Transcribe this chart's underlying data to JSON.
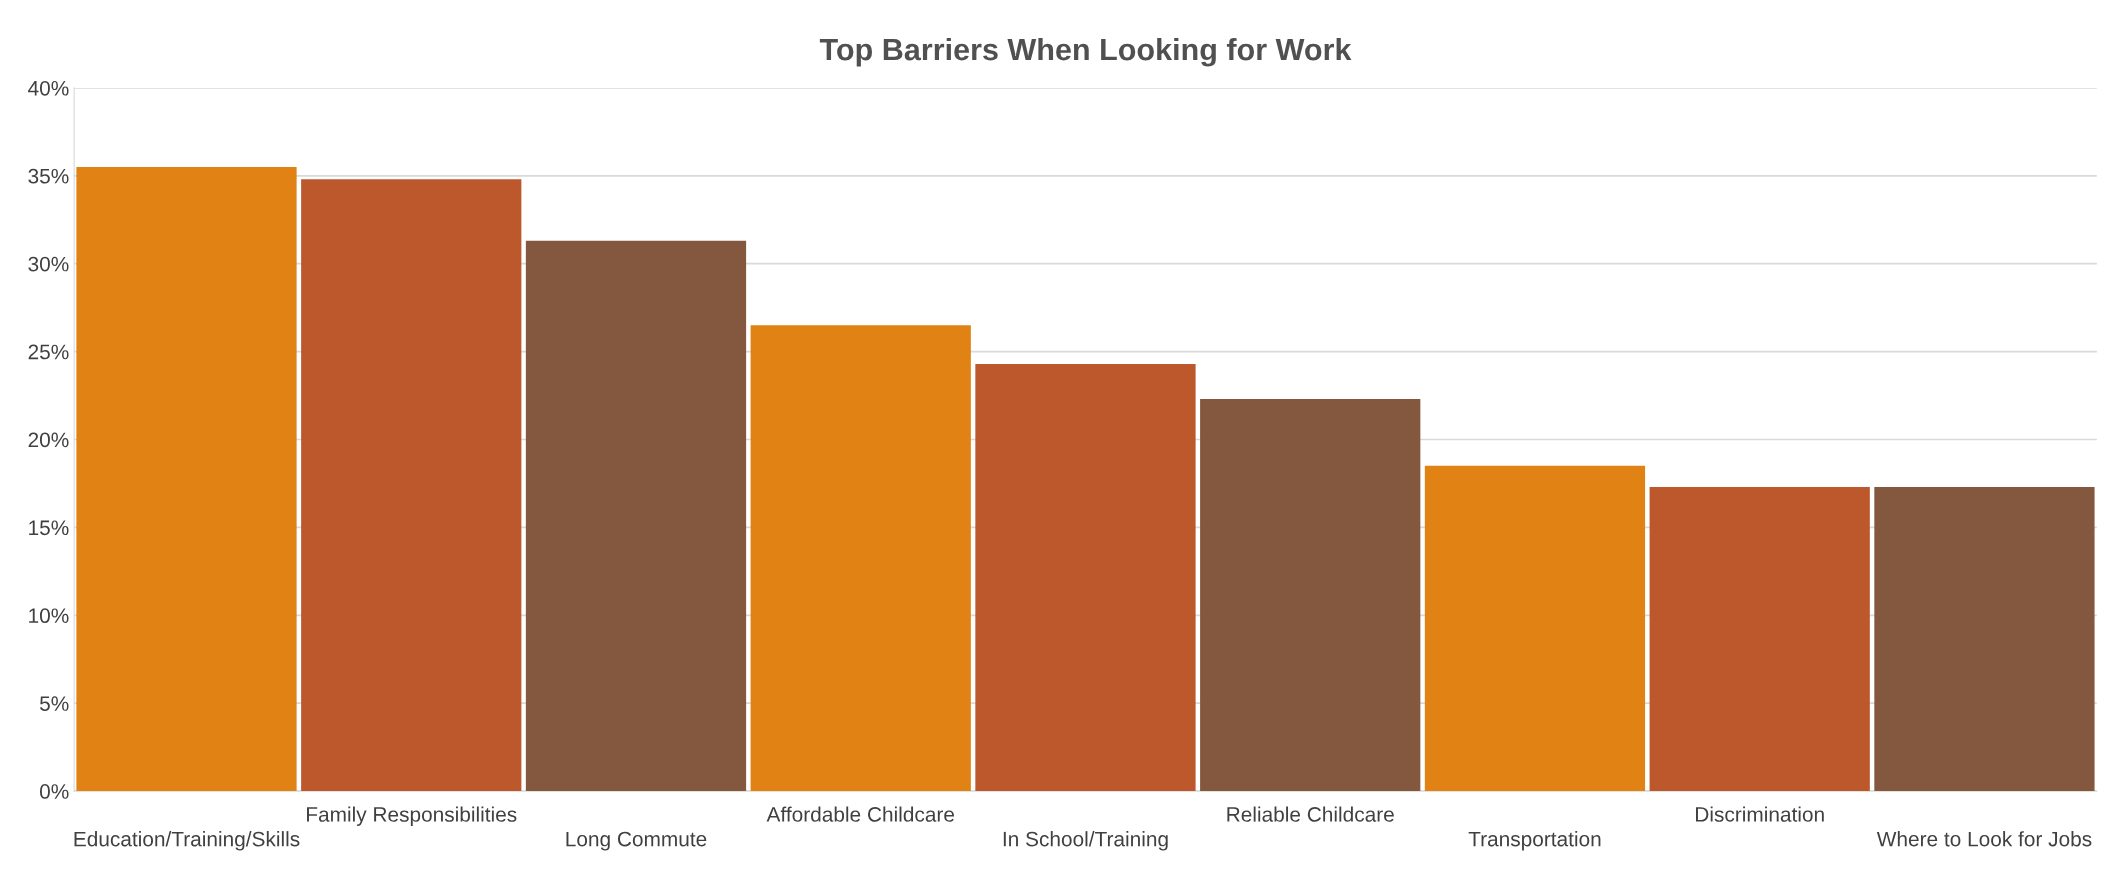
{
  "chart_data": {
    "type": "bar",
    "title": "Top Barriers When Looking for Work",
    "categories": [
      "Education/Training/Skills",
      "Family Responsibilities",
      "Long Commute",
      "Affordable Childcare",
      "In School/Training",
      "Reliable Childcare",
      "Transportation",
      "Discrimination",
      "Where to Look for Jobs"
    ],
    "values": [
      35.5,
      34.8,
      31.3,
      26.5,
      24.3,
      22.3,
      18.5,
      17.3,
      17.3
    ],
    "colors": [
      "#e08214",
      "#bc582c",
      "#84583f",
      "#e08214",
      "#bc582c",
      "#84583f",
      "#e08214",
      "#bc582c",
      "#84583f"
    ],
    "ylim": [
      0,
      40
    ],
    "yticks": [
      {
        "value": 0,
        "label": "0%"
      },
      {
        "value": 5,
        "label": "5%"
      },
      {
        "value": 10,
        "label": "10%"
      },
      {
        "value": 15,
        "label": "15%"
      },
      {
        "value": 20,
        "label": "20%"
      },
      {
        "value": 25,
        "label": "25%"
      },
      {
        "value": 30,
        "label": "30%"
      },
      {
        "value": 35,
        "label": "35%"
      },
      {
        "value": 40,
        "label": "40%"
      }
    ],
    "grid": "y"
  }
}
